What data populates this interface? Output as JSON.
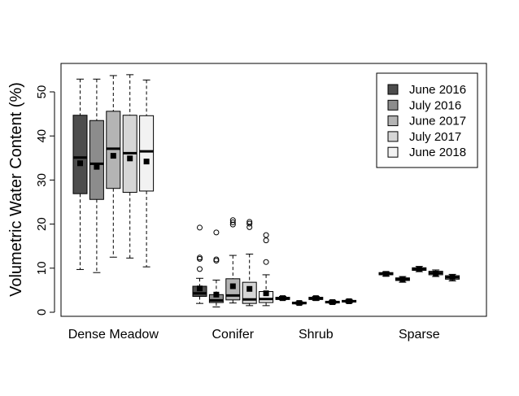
{
  "chart_data": {
    "type": "box",
    "title": "",
    "xlabel": "",
    "ylabel": "Volumetric Water Content (%)",
    "ylim": [
      0,
      55
    ],
    "yticks": [
      0,
      10,
      20,
      30,
      40,
      50
    ],
    "grid": false,
    "legend_position": "top-right",
    "categories": [
      "Dense Meadow",
      "Conifer",
      "Shrub",
      "Sparse"
    ],
    "series": [
      {
        "name": "June 2016",
        "color": "#4d4d4d",
        "boxes": [
          {
            "min": 9.7,
            "q1": 26.9,
            "median": 35.1,
            "q3": 44.7,
            "max": 52.9,
            "mean": 33.8,
            "outliers": []
          },
          {
            "min": 2.0,
            "q1": 3.6,
            "median": 4.3,
            "q3": 5.9,
            "max": 7.7,
            "mean": 5.4,
            "outliers": [
              9.8,
              12.1,
              12.4,
              19.2
            ]
          },
          {
            "min": 2.8,
            "q1": 2.9,
            "median": 3.1,
            "q3": 3.4,
            "max": 3.6,
            "mean": 3.2,
            "outliers": []
          },
          {
            "min": 8.2,
            "q1": 8.5,
            "median": 8.7,
            "q3": 9.0,
            "max": 9.2,
            "mean": 8.7,
            "outliers": []
          }
        ]
      },
      {
        "name": "July 2016",
        "color": "#8c8c8c",
        "boxes": [
          {
            "min": 9.0,
            "q1": 25.6,
            "median": 33.7,
            "q3": 43.5,
            "max": 52.9,
            "mean": 33.0,
            "outliers": []
          },
          {
            "min": 1.2,
            "q1": 2.2,
            "median": 2.7,
            "q3": 4.0,
            "max": 7.3,
            "mean": 4.0,
            "outliers": [
              11.7,
              12.0,
              18.1
            ]
          },
          {
            "min": 1.8,
            "q1": 1.9,
            "median": 2.1,
            "q3": 2.3,
            "max": 2.4,
            "mean": 2.1,
            "outliers": []
          },
          {
            "min": 6.8,
            "q1": 7.2,
            "median": 7.5,
            "q3": 7.8,
            "max": 8.1,
            "mean": 7.5,
            "outliers": []
          }
        ]
      },
      {
        "name": "June 2017",
        "color": "#b4b4b4",
        "boxes": [
          {
            "min": 12.5,
            "q1": 28.1,
            "median": 37.1,
            "q3": 45.6,
            "max": 53.7,
            "mean": 35.5,
            "outliers": []
          },
          {
            "min": 2.1,
            "q1": 2.8,
            "median": 3.8,
            "q3": 7.6,
            "max": 12.9,
            "mean": 5.9,
            "outliers": [
              19.9,
              20.4,
              20.9
            ]
          },
          {
            "min": 2.7,
            "q1": 2.9,
            "median": 3.1,
            "q3": 3.4,
            "max": 3.6,
            "mean": 3.2,
            "outliers": []
          },
          {
            "min": 9.2,
            "q1": 9.5,
            "median": 9.8,
            "q3": 10.1,
            "max": 10.4,
            "mean": 9.8,
            "outliers": []
          }
        ]
      },
      {
        "name": "July 2017",
        "color": "#d6d6d6",
        "boxes": [
          {
            "min": 12.3,
            "q1": 27.2,
            "median": 36.1,
            "q3": 44.7,
            "max": 53.9,
            "mean": 34.9,
            "outliers": []
          },
          {
            "min": 1.5,
            "q1": 2.0,
            "median": 2.9,
            "q3": 6.8,
            "max": 13.2,
            "mean": 5.3,
            "outliers": [
              19.3,
              20.1,
              20.5
            ]
          },
          {
            "min": 1.9,
            "q1": 2.1,
            "median": 2.3,
            "q3": 2.5,
            "max": 2.7,
            "mean": 2.3,
            "outliers": []
          },
          {
            "min": 8.1,
            "q1": 8.5,
            "median": 8.9,
            "q3": 9.3,
            "max": 9.6,
            "mean": 8.8,
            "outliers": []
          }
        ]
      },
      {
        "name": "June 2018",
        "color": "#f2f2f2",
        "boxes": [
          {
            "min": 10.3,
            "q1": 27.5,
            "median": 36.5,
            "q3": 44.6,
            "max": 52.7,
            "mean": 34.2,
            "outliers": []
          },
          {
            "min": 1.5,
            "q1": 2.2,
            "median": 3.0,
            "q3": 4.7,
            "max": 8.5,
            "mean": 4.3,
            "outliers": [
              11.4,
              16.3,
              17.5
            ]
          },
          {
            "min": 2.1,
            "q1": 2.3,
            "median": 2.5,
            "q3": 2.7,
            "max": 2.9,
            "mean": 2.5,
            "outliers": []
          },
          {
            "min": 7.1,
            "q1": 7.5,
            "median": 7.9,
            "q3": 8.3,
            "max": 8.6,
            "mean": 7.9,
            "outliers": []
          }
        ]
      }
    ]
  }
}
